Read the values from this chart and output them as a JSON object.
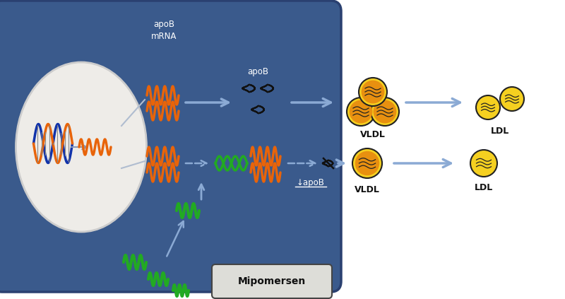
{
  "bg_color": "#3A5A8C",
  "nucleus_color": "#F0EEEA",
  "orange_color": "#E8640A",
  "green_color": "#22AA22",
  "blue_dna_color": "#1133AA",
  "arr_color": "#8BAAD4",
  "vldl_outer": "#E89010",
  "vldl_inner": "#F5D020",
  "label_apob_mrna": "apoB\nmRNA",
  "label_apob": "apoB",
  "label_vldl": "VLDL",
  "label_ldl": "LDL",
  "label_down_apob": "↓apoB",
  "label_mipomersen": "Mipomersen"
}
